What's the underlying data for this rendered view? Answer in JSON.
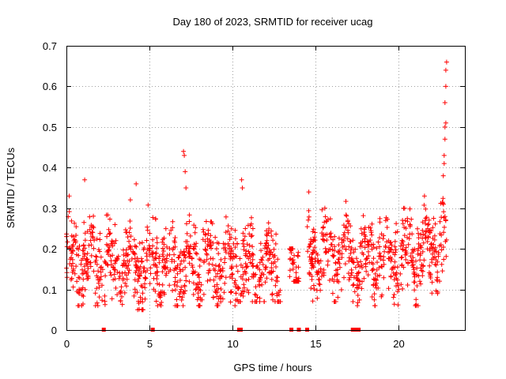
{
  "chart_data": {
    "type": "scatter",
    "title": "Day 180 of 2023, SRMTID for receiver ucag",
    "xlabel": "GPS time / hours",
    "ylabel": "SRMTID / TECUs",
    "xlim": [
      0,
      24
    ],
    "ylim": [
      0,
      0.7
    ],
    "x_ticks": [
      0,
      5,
      10,
      15,
      20
    ],
    "x_tick_labels": [
      "0",
      "5",
      "10",
      "15",
      "20"
    ],
    "y_ticks": [
      0,
      0.1,
      0.2,
      0.3,
      0.4,
      0.5,
      0.6,
      0.7
    ],
    "y_tick_labels": [
      "0",
      "0.1",
      "0.2",
      "0.3",
      "0.4",
      "0.5",
      "0.6",
      "0.7"
    ],
    "grid": true,
    "marker": "plus",
    "color": "#ff0000",
    "series": [
      {
        "name": "SRMTID",
        "segments": [
          {
            "x_start": 0.0,
            "x_end": 2.2,
            "y_mean": 0.17,
            "y_min": 0.06,
            "y_max": 0.33
          },
          {
            "x_start": 2.3,
            "x_end": 5.0,
            "y_mean": 0.16,
            "y_min": 0.05,
            "y_max": 0.36
          },
          {
            "x_start": 5.0,
            "x_end": 10.3,
            "y_mean": 0.16,
            "y_min": 0.06,
            "y_max": 0.32
          },
          {
            "x_start": 10.3,
            "x_end": 12.9,
            "y_mean": 0.15,
            "y_min": 0.07,
            "y_max": 0.3
          },
          {
            "x_start": 13.4,
            "x_end": 14.0,
            "y_mean": 0.17,
            "y_min": 0.12,
            "y_max": 0.2
          },
          {
            "x_start": 14.5,
            "x_end": 17.5,
            "y_mean": 0.18,
            "y_min": 0.07,
            "y_max": 0.33
          },
          {
            "x_start": 17.5,
            "x_end": 21.5,
            "y_mean": 0.18,
            "y_min": 0.06,
            "y_max": 0.3
          },
          {
            "x_start": 21.5,
            "x_end": 22.9,
            "y_mean": 0.21,
            "y_min": 0.09,
            "y_max": 0.33
          }
        ],
        "outliers": [
          {
            "x": 1.1,
            "y": 0.37
          },
          {
            "x": 4.2,
            "y": 0.36
          },
          {
            "x": 7.05,
            "y": 0.44
          },
          {
            "x": 7.1,
            "y": 0.43
          },
          {
            "x": 7.15,
            "y": 0.39
          },
          {
            "x": 7.2,
            "y": 0.35
          },
          {
            "x": 10.55,
            "y": 0.37
          },
          {
            "x": 10.6,
            "y": 0.35
          },
          {
            "x": 14.6,
            "y": 0.34
          },
          {
            "x": 22.7,
            "y": 0.38
          },
          {
            "x": 22.75,
            "y": 0.41
          },
          {
            "x": 22.75,
            "y": 0.43
          },
          {
            "x": 22.8,
            "y": 0.47
          },
          {
            "x": 22.8,
            "y": 0.5
          },
          {
            "x": 22.85,
            "y": 0.51
          },
          {
            "x": 22.8,
            "y": 0.56
          },
          {
            "x": 22.85,
            "y": 0.6
          },
          {
            "x": 22.85,
            "y": 0.64
          },
          {
            "x": 22.9,
            "y": 0.66
          }
        ]
      }
    ],
    "zero_markers_x": [
      2.25,
      5.2,
      10.4,
      10.5,
      13.55,
      14.0,
      14.5,
      17.25,
      17.45,
      17.6
    ]
  }
}
